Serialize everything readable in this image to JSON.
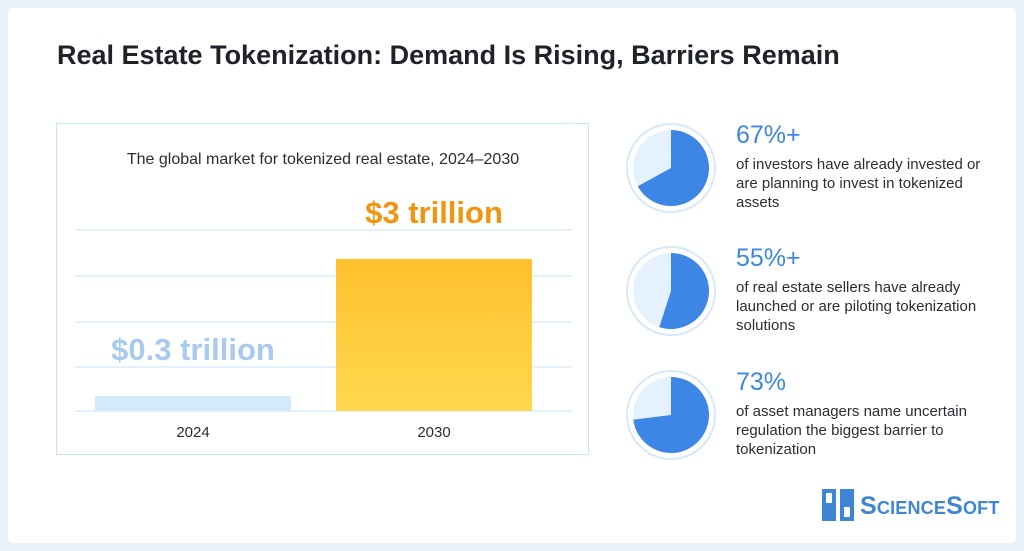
{
  "title": "Real Estate Tokenization: Demand Is Rising, Barriers Remain",
  "chart_data": {
    "type": "bar",
    "title": "The global market for tokenized real estate, 2024–2030",
    "categories": [
      "2024",
      "2030"
    ],
    "values": [
      0.3,
      3
    ],
    "data_labels": [
      "$0.3 trillion",
      "$3 trillion"
    ],
    "unit": "trillion USD",
    "grid": true,
    "colors": {
      "bar_2024": "#d3eafa",
      "bar_2030": "#ffc93c",
      "label_2024": "#a9c9ef",
      "label_2030": "#f0950f",
      "grid": "#c9e2f6"
    }
  },
  "stats": [
    {
      "value": "67%+",
      "percent": 67,
      "description": "of investors have already invested or are planning to invest in tokenized assets"
    },
    {
      "value": "55%+",
      "percent": 55,
      "description": "of real estate sellers have already launched or are piloting tokenization solutions"
    },
    {
      "value": "73%",
      "percent": 73,
      "description": "of asset managers name uncertain regulation the biggest barrier to tokenization"
    }
  ],
  "logo": {
    "text": "ScienceSoft",
    "icon": "sciencesoft-logo-icon"
  },
  "colors": {
    "accent": "#3d86e6",
    "title": "#1f2229",
    "background": "#e9f2fb"
  }
}
